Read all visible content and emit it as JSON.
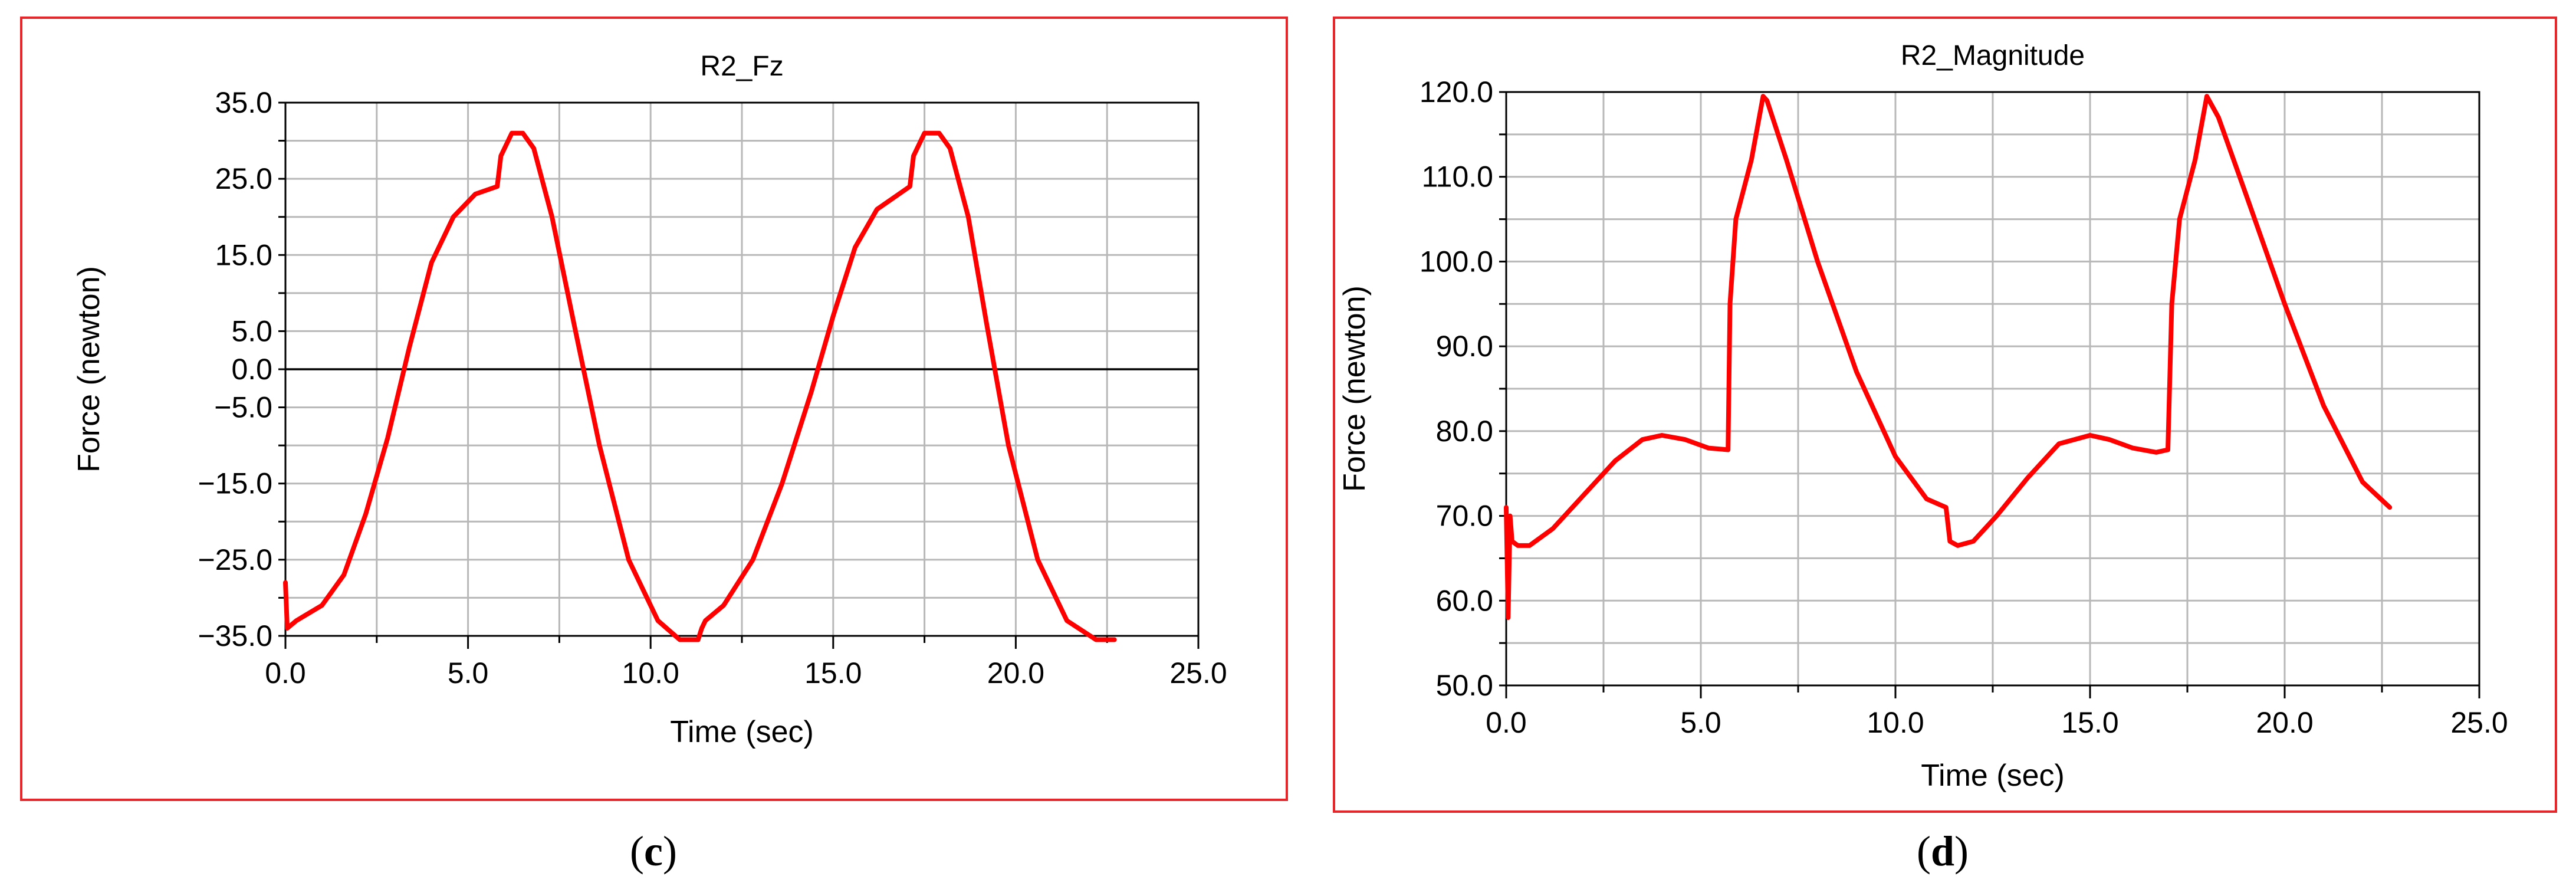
{
  "panel_border_color": "#e8262a",
  "chart_data": [
    {
      "type": "line",
      "title": "R2_Fz",
      "xlabel": "Time (sec)",
      "ylabel": "Force (newton)",
      "xlim": [
        0,
        25
      ],
      "ylim": [
        -35,
        35
      ],
      "x_ticks": [
        "0.0",
        "5.0",
        "10.0",
        "15.0",
        "20.0",
        "25.0"
      ],
      "y_ticks": [
        {
          "value": 35,
          "label": "35.0"
        },
        {
          "value": 25,
          "label": "25.0"
        },
        {
          "value": 15,
          "label": "15.0"
        },
        {
          "value": 5,
          "label": "5.0"
        },
        {
          "value": 0,
          "label": "0.0"
        },
        {
          "value": -5,
          "label": "−5.0"
        },
        {
          "value": -15,
          "label": "−15.0"
        },
        {
          "value": -25,
          "label": "−25.0"
        },
        {
          "value": -35,
          "label": "−35.0"
        }
      ],
      "grid": true,
      "zero_line": true,
      "series_color": "#ff0000",
      "caption": "c",
      "series": [
        {
          "x": [
            0,
            0.05,
            0.3,
            1,
            1.6,
            2.2,
            2.8,
            3.4,
            4.0,
            4.6,
            5.2,
            5.8,
            5.9,
            6.2,
            6.5,
            6.8,
            7.3,
            7.9,
            8.6,
            9.4,
            10.2,
            10.8,
            11.3,
            11.4,
            11.5,
            12,
            12.8,
            13.6,
            14.4,
            15.0,
            15.6,
            16.2,
            16.8,
            17.1,
            17.2,
            17.5,
            17.9,
            18.2,
            18.7,
            19.2,
            19.8,
            20.6,
            21.4,
            22.2,
            22.7
          ],
          "y": [
            -28,
            -34,
            -33,
            -31,
            -27,
            -19,
            -9,
            3,
            14,
            20,
            23,
            24,
            28,
            31,
            31,
            29,
            20,
            6,
            -10,
            -25,
            -33,
            -35.5,
            -35.5,
            -34,
            -33,
            -31,
            -25,
            -15,
            -3,
            7,
            16,
            21,
            23,
            24,
            28,
            31,
            31,
            29,
            20,
            6,
            -10,
            -25,
            -33,
            -35.5,
            -35.5
          ]
        }
      ]
    },
    {
      "type": "line",
      "title": "R2_Magnitude",
      "xlabel": "Time (sec)",
      "ylabel": "Force (newton)",
      "xlim": [
        0,
        25
      ],
      "ylim": [
        50,
        120
      ],
      "x_ticks": [
        "0.0",
        "5.0",
        "10.0",
        "15.0",
        "20.0",
        "25.0"
      ],
      "y_ticks": [
        {
          "value": 120,
          "label": "120.0"
        },
        {
          "value": 110,
          "label": "110.0"
        },
        {
          "value": 100,
          "label": "100.0"
        },
        {
          "value": 90,
          "label": "90.0"
        },
        {
          "value": 80,
          "label": "80.0"
        },
        {
          "value": 70,
          "label": "70.0"
        },
        {
          "value": 60,
          "label": "60.0"
        },
        {
          "value": 50,
          "label": "50.0"
        }
      ],
      "grid": true,
      "zero_line": false,
      "series_color": "#ff0000",
      "caption": "d",
      "series": [
        {
          "x": [
            0,
            0.05,
            0.1,
            0.15,
            0.3,
            0.6,
            1.2,
            2.0,
            2.8,
            3.5,
            4.0,
            4.6,
            5.2,
            5.7,
            5.75,
            5.9,
            6.3,
            6.6,
            6.7,
            7.2,
            8.0,
            9.0,
            10.0,
            10.8,
            11.3,
            11.4,
            11.6,
            12.0,
            12.6,
            13.4,
            14.2,
            15.0,
            15.5,
            16.1,
            16.7,
            17.0,
            17.1,
            17.3,
            17.7,
            18.0,
            18.3,
            19.0,
            20.0,
            21.0,
            22.0,
            22.7
          ],
          "y": [
            71,
            58,
            70,
            67,
            66.5,
            66.5,
            68.5,
            72.5,
            76.5,
            79,
            79.5,
            79,
            78,
            77.8,
            95,
            105,
            112,
            119.5,
            119,
            112,
            100,
            87,
            77,
            72,
            71,
            67,
            66.5,
            67,
            70,
            74.5,
            78.5,
            79.5,
            79,
            78,
            77.5,
            77.8,
            95,
            105,
            112,
            119.5,
            117,
            108,
            95,
            83,
            74,
            71
          ]
        }
      ]
    }
  ]
}
